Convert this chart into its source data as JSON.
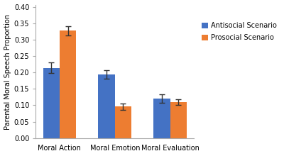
{
  "categories": [
    "Moral Action",
    "Moral Emotion",
    "Moral Evaluation"
  ],
  "antisocial_values": [
    0.214,
    0.195,
    0.121
  ],
  "prosocial_values": [
    0.328,
    0.096,
    0.109
  ],
  "antisocial_errors": [
    0.016,
    0.013,
    0.013
  ],
  "prosocial_errors": [
    0.014,
    0.01,
    0.009
  ],
  "antisocial_color": "#4472C4",
  "prosocial_color": "#ED7D31",
  "antisocial_label": "Antisocial Scenario",
  "prosocial_label": "Prosocial Scenario",
  "ylabel": "Parental Moral Speech Proportion",
  "ylim": [
    0.0,
    0.405
  ],
  "yticks": [
    0.0,
    0.05,
    0.1,
    0.15,
    0.2,
    0.25,
    0.3,
    0.35,
    0.4
  ],
  "bar_width": 0.3,
  "background_color": "#ffffff",
  "legend_fontsize": 7,
  "ylabel_fontsize": 7,
  "tick_fontsize": 7,
  "capsize": 3
}
